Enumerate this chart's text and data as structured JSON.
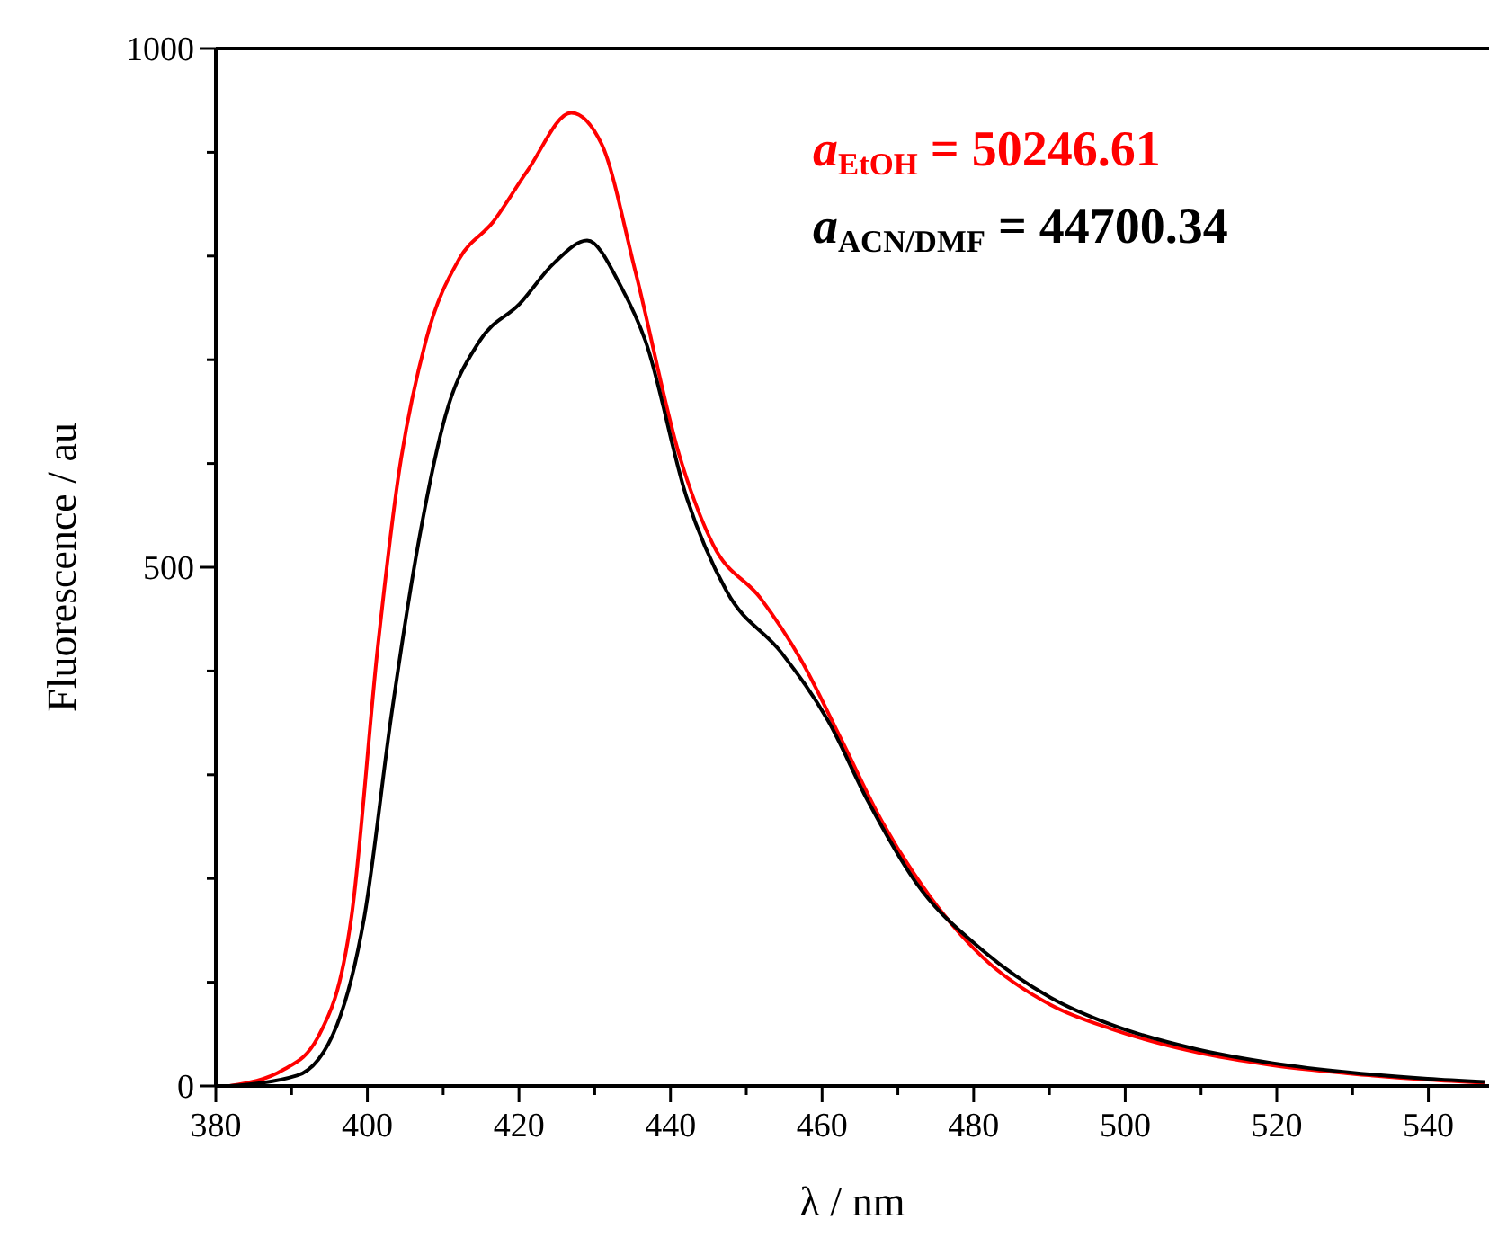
{
  "chart_data": {
    "type": "line",
    "xlabel": "λ / nm",
    "ylabel": "Fluorescence / au",
    "xlim": [
      380,
      548
    ],
    "ylim": [
      0,
      1000
    ],
    "xticks": [
      380,
      {
        "value": 390,
        "label": null
      },
      400,
      {
        "value": 410,
        "label": null
      },
      420,
      {
        "value": 430,
        "label": null
      },
      440,
      {
        "value": 450,
        "label": null
      },
      460,
      {
        "value": 470,
        "label": null
      },
      480,
      {
        "value": 490,
        "label": null
      },
      500,
      {
        "value": 510,
        "label": null
      },
      520,
      {
        "value": 530,
        "label": null
      },
      540
    ],
    "yticks": [
      0,
      {
        "value": 100,
        "label": null
      },
      {
        "value": 200,
        "label": null
      },
      {
        "value": 300,
        "label": null
      },
      {
        "value": 400,
        "label": null
      },
      500,
      {
        "value": 600,
        "label": null
      },
      {
        "value": 700,
        "label": null
      },
      {
        "value": 800,
        "label": null
      },
      {
        "value": 900,
        "label": null
      },
      1000
    ],
    "grid": false,
    "marker": "none",
    "line_style": "solid",
    "series": [
      {
        "color": "#ff0000",
        "x": [
          381.8,
          389,
          393.4,
          397.9,
          401.4,
          404.1,
          407.7,
          412.1,
          416.6,
          421.1,
          426.9,
          430.9,
          435.4,
          441.2,
          445.6,
          451.9,
          457.2,
          462.6,
          467.9,
          474.2,
          481.2,
          490.2,
          498.2,
          509.1,
          519.5,
          529.7,
          539.9,
          547.4
        ],
        "values": [
          0,
          16,
          46,
          163,
          425,
          588,
          718,
          797,
          833,
          882,
          938,
          908,
          784,
          607,
          522,
          470,
          411,
          333,
          255,
          183,
          124,
          78,
          55,
          33,
          20,
          12,
          6,
          3
        ]
      },
      {
        "color": "#000000",
        "x": [
          381.8,
          390.7,
          396,
          399.6,
          403.2,
          406.7,
          410.3,
          414.8,
          420.1,
          424.6,
          429,
          433.5,
          436.7,
          442.1,
          447.4,
          454.6,
          460.8,
          466.1,
          472.4,
          481.3,
          490.2,
          498.2,
          509.1,
          519.5,
          529.7,
          539.9,
          547.4
        ],
        "values": [
          0,
          10,
          59,
          163,
          359,
          522,
          646,
          718,
          754,
          793,
          815,
          770,
          718,
          568,
          477,
          418,
          352,
          274,
          196,
          130,
          85,
          59,
          36,
          22,
          13,
          7,
          4
        ]
      }
    ],
    "annotations": [
      "a$_{EtOH}$ = 50246.61",
      "a$_{ACN/DMF}$ = 44700.34"
    ]
  }
}
